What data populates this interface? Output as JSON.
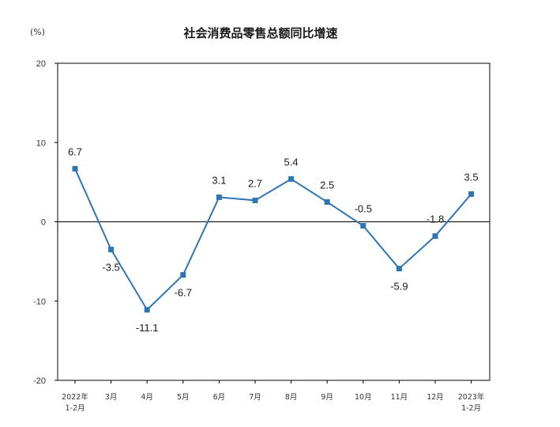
{
  "chart_data": {
    "type": "line",
    "title": "社会消费品零售总额同比增速",
    "unit_label": "(%)",
    "categories": [
      [
        "2022年",
        "1-2月"
      ],
      [
        "3月"
      ],
      [
        "4月"
      ],
      [
        "5月"
      ],
      [
        "6月"
      ],
      [
        "7月"
      ],
      [
        "8月"
      ],
      [
        "9月"
      ],
      [
        "10月"
      ],
      [
        "11月"
      ],
      [
        "12月"
      ],
      [
        "2023年",
        "1-2月"
      ]
    ],
    "values": [
      6.7,
      -3.5,
      -11.1,
      -6.7,
      3.1,
      2.7,
      5.4,
      2.5,
      -0.5,
      -5.9,
      -1.8,
      3.5
    ],
    "data_labels": [
      "6.7",
      "-3.5",
      "-11.1",
      "-6.7",
      "3.1",
      "2.7",
      "5.4",
      "2.5",
      "-0.5",
      "-5.9",
      "-1.8",
      "3.5"
    ],
    "ylim": [
      -20,
      20
    ],
    "yticks": [
      20,
      10,
      0,
      -10,
      -20
    ],
    "grid": false,
    "line_color": "#2e75b6",
    "axis_color": "#000000"
  }
}
